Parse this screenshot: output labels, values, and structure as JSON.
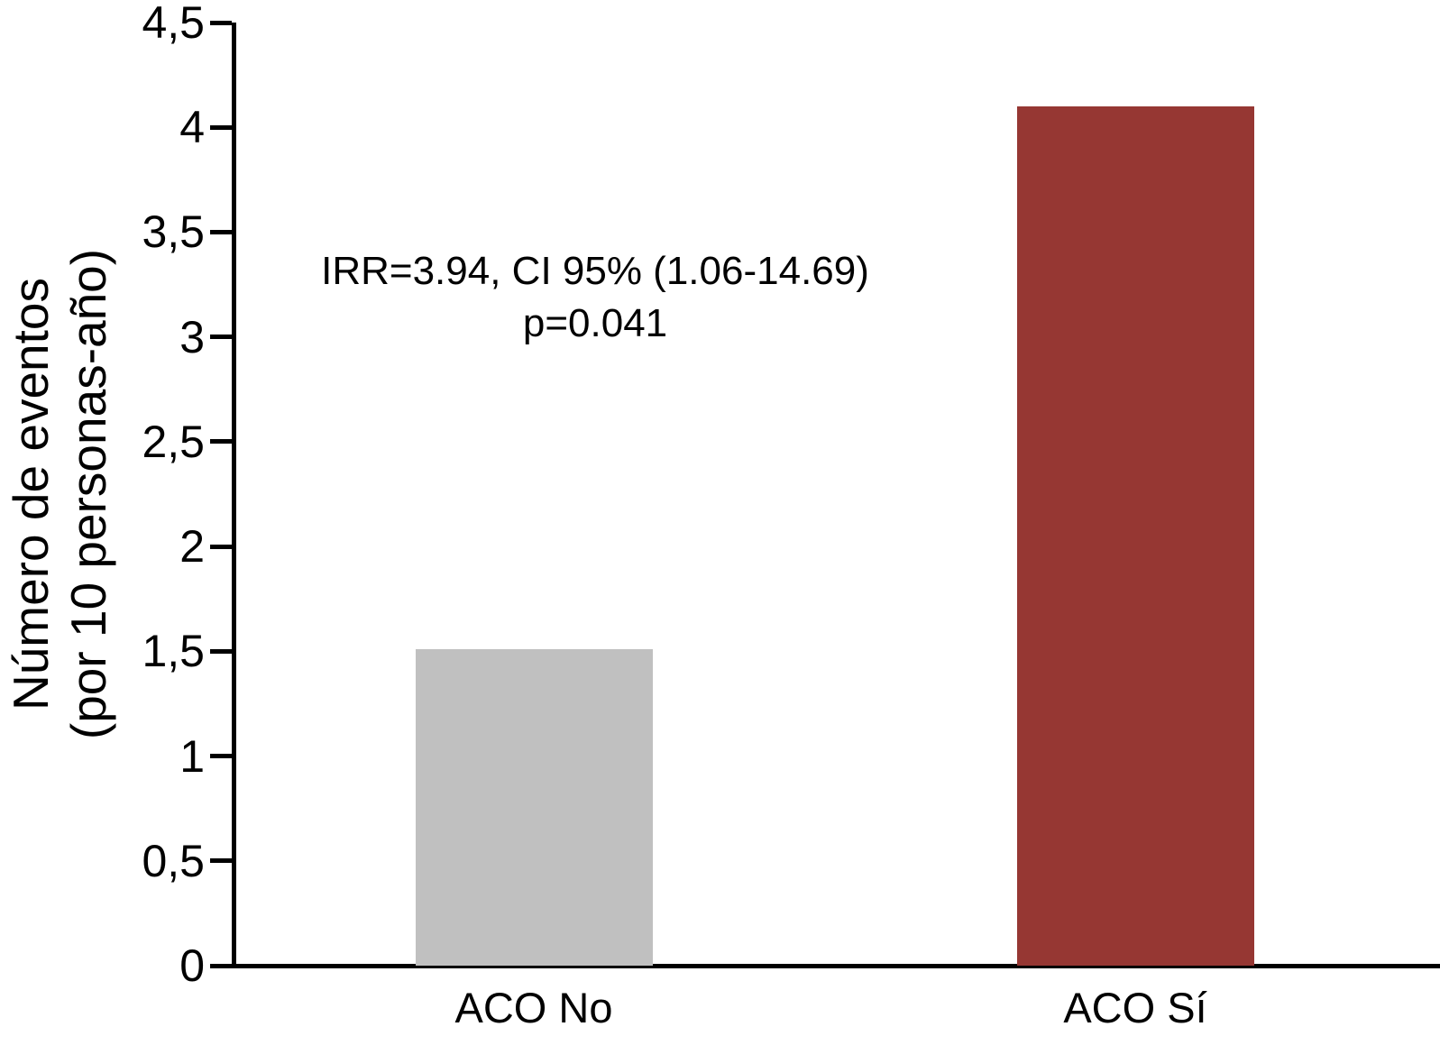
{
  "chart_data": {
    "type": "bar",
    "title": "",
    "categories": [
      "ACO No",
      "ACO Sí"
    ],
    "values": [
      1.51,
      4.1
    ],
    "bar_colors": [
      "#c0c0c0",
      "#963733"
    ],
    "xlabel": "",
    "ylabel_line1": "Número de eventos",
    "ylabel_line2": "(por 10 personas-año)",
    "ylim": [
      0,
      4.5
    ],
    "ytick_step": 0.5,
    "ytick_labels": [
      "0",
      "0,5",
      "1",
      "1,5",
      "2",
      "2,5",
      "3",
      "3,5",
      "4",
      "4,5"
    ],
    "grid": false,
    "legend": "none",
    "axis_color": "#000000",
    "annotation": {
      "line1": "IRR=3.94, CI 95% (1.06-14.69)",
      "line2": "p=0.041"
    }
  }
}
